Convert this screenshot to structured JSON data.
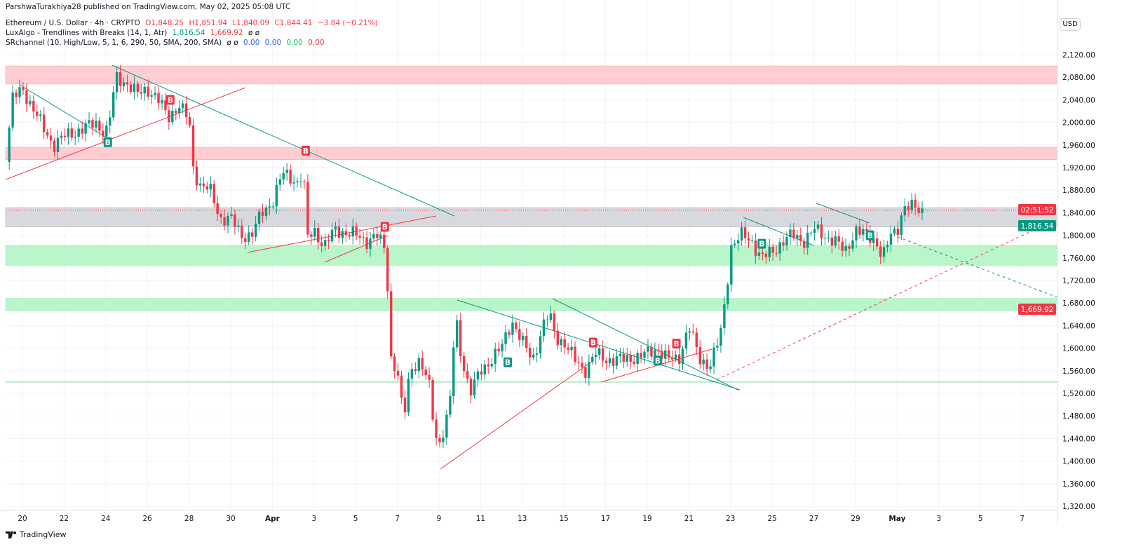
{
  "header": {
    "published": "ParshwaTurakhiya28 published on TradingView.com, May 02, 2025 05:08 UTC"
  },
  "legend": {
    "symbol": "Ethereum / U.S. Dollar · 4h · CRYPTO",
    "o": "O1,848.25",
    "h": "H1,851.94",
    "l": "L1,840.09",
    "c": "C1,844.41",
    "chg": "−3.84 (−0.21%)",
    "ind1": "LuxAlgo - Trendlines with Breaks (14, 1, Atr)",
    "ind1_v1": "1,816.54",
    "ind1_v2": "1,669.92",
    "ind1_na": "ø ø",
    "ind2": "SRchannel (10, High/Low, 5, 1, 6, 290, 50, SMA, 200, SMA)",
    "ind2_na": "ø ø",
    "ind2_v": [
      "0.00",
      "0.00",
      "0.00",
      "0.00"
    ]
  },
  "currency": "USD",
  "countdown": "02:51:52",
  "footer": {
    "brand": "TradingView"
  },
  "colors": {
    "up": "#089981",
    "down": "#f23645",
    "resistance": "#f23645",
    "support": "#00e676",
    "neutral": "#9598a1"
  },
  "chart_data": {
    "type": "candlestick",
    "timeframe": "4h",
    "ylim": [
      1300,
      2140
    ],
    "y_ticks": [
      "2,120.00",
      "2,080.00",
      "2,040.00",
      "2,000.00",
      "1,960.00",
      "1,920.00",
      "1,880.00",
      "1,840.00",
      "1,800.00",
      "1,760.00",
      "1,720.00",
      "1,680.00",
      "1,640.00",
      "1,600.00",
      "1,560.00",
      "1,520.00",
      "1,480.00",
      "1,440.00",
      "1,400.00",
      "1,360.00",
      "1,320.00"
    ],
    "y_tick_values": [
      2120,
      2080,
      2040,
      2000,
      1960,
      1920,
      1880,
      1840,
      1800,
      1760,
      1720,
      1680,
      1640,
      1600,
      1560,
      1520,
      1480,
      1440,
      1400,
      1360,
      1320
    ],
    "x_ticks": [
      "20",
      "22",
      "24",
      "26",
      "28",
      "30",
      "Apr",
      "3",
      "5",
      "7",
      "9",
      "11",
      "13",
      "15",
      "17",
      "19",
      "21",
      "23",
      "25",
      "27",
      "29",
      "May",
      "3",
      "5",
      "7"
    ],
    "x_tick_days": [
      0,
      2,
      4,
      6,
      8,
      10,
      12,
      14,
      16,
      18,
      20,
      22,
      24,
      26,
      28,
      30,
      32,
      34,
      36,
      38,
      40,
      42,
      44,
      46,
      48
    ],
    "price_path_note_days_since_mar20": "day,price",
    "price_path": [
      [
        -0.8,
        1930
      ],
      [
        -0.5,
        2040
      ],
      [
        0,
        2060
      ],
      [
        1,
        1990
      ],
      [
        1.5,
        1960
      ],
      [
        2,
        1975
      ],
      [
        3,
        1990
      ],
      [
        3.5,
        2000
      ],
      [
        4,
        1980
      ],
      [
        4.2,
        2010
      ],
      [
        4.5,
        2080
      ],
      [
        5,
        2070
      ],
      [
        5.5,
        2050
      ],
      [
        6,
        2060
      ],
      [
        6.5,
        2040
      ],
      [
        7,
        2010
      ],
      [
        7.5,
        2030
      ],
      [
        8,
        2005
      ],
      [
        8.2,
        1920
      ],
      [
        8.5,
        1890
      ],
      [
        9,
        1880
      ],
      [
        9.5,
        1830
      ],
      [
        10,
        1830
      ],
      [
        10.5,
        1800
      ],
      [
        11,
        1800
      ],
      [
        11.5,
        1840
      ],
      [
        12,
        1860
      ],
      [
        12.5,
        1910
      ],
      [
        13,
        1900
      ],
      [
        13.3,
        1890
      ],
      [
        13.5,
        1930
      ],
      [
        13.6,
        1790
      ],
      [
        14,
        1810
      ],
      [
        14.5,
        1780
      ],
      [
        15,
        1810
      ],
      [
        16,
        1800
      ],
      [
        16.5,
        1790
      ],
      [
        17,
        1800
      ],
      [
        17.5,
        1770
      ],
      [
        17.6,
        1590
      ],
      [
        18,
        1560
      ],
      [
        18.3,
        1470
      ],
      [
        18.6,
        1560
      ],
      [
        19,
        1580
      ],
      [
        19.5,
        1540
      ],
      [
        19.8,
        1450
      ],
      [
        20,
        1430
      ],
      [
        20.5,
        1490
      ],
      [
        20.8,
        1660
      ],
      [
        21,
        1600
      ],
      [
        21.5,
        1520
      ],
      [
        22,
        1560
      ],
      [
        22.5,
        1580
      ],
      [
        23,
        1600
      ],
      [
        23.5,
        1650
      ],
      [
        24,
        1610
      ],
      [
        24.5,
        1580
      ],
      [
        25,
        1640
      ],
      [
        25.3,
        1660
      ],
      [
        25.6,
        1620
      ],
      [
        26,
        1610
      ],
      [
        26.5,
        1580
      ],
      [
        27,
        1560
      ],
      [
        27.5,
        1590
      ],
      [
        28,
        1580
      ],
      [
        29,
        1580
      ],
      [
        30,
        1590
      ],
      [
        30.5,
        1600
      ],
      [
        31,
        1580
      ],
      [
        31.5,
        1580
      ],
      [
        32,
        1640
      ],
      [
        32.5,
        1580
      ],
      [
        33,
        1570
      ],
      [
        33.5,
        1620
      ],
      [
        33.8,
        1700
      ],
      [
        34,
        1780
      ],
      [
        34.5,
        1800
      ],
      [
        35,
        1790
      ],
      [
        35.5,
        1760
      ],
      [
        36,
        1770
      ],
      [
        36.5,
        1790
      ],
      [
        37,
        1800
      ],
      [
        37.5,
        1790
      ],
      [
        38,
        1810
      ],
      [
        38.5,
        1800
      ],
      [
        39,
        1790
      ],
      [
        39.5,
        1770
      ],
      [
        40,
        1810
      ],
      [
        40.5,
        1800
      ],
      [
        41,
        1790
      ],
      [
        41.3,
        1760
      ],
      [
        41.7,
        1800
      ],
      [
        42,
        1810
      ],
      [
        42.3,
        1850
      ],
      [
        42.6,
        1850
      ],
      [
        43.2,
        1844
      ]
    ],
    "zones": [
      {
        "type": "resistance",
        "from": 2068,
        "to": 2100
      },
      {
        "type": "resistance",
        "from": 1934,
        "to": 1956
      },
      {
        "type": "neutral",
        "from": 1815,
        "to": 1849
      },
      {
        "type": "support",
        "from": 1747,
        "to": 1782
      },
      {
        "type": "support",
        "from": 1667,
        "to": 1688
      }
    ],
    "support_line": 1540,
    "last_price": 1844.41,
    "price_labels": {
      "upper_trendline": "1,816.54",
      "lower_trendline": "1,669.92"
    },
    "break_labels": [
      {
        "day": 4.1,
        "price": 1965,
        "kind": "B",
        "dir": "up"
      },
      {
        "day": 7.1,
        "price": 2040,
        "kind": "B",
        "dir": "down"
      },
      {
        "day": 13.6,
        "price": 1950,
        "kind": "B",
        "dir": "down"
      },
      {
        "day": 17.4,
        "price": 1815,
        "kind": "B",
        "dir": "down"
      },
      {
        "day": 23.3,
        "price": 1575,
        "kind": "B",
        "dir": "up"
      },
      {
        "day": 27.4,
        "price": 1610,
        "kind": "B",
        "dir": "down"
      },
      {
        "day": 30.5,
        "price": 1578,
        "kind": "B",
        "dir": "up"
      },
      {
        "day": 31.4,
        "price": 1608,
        "kind": "B",
        "dir": "down"
      },
      {
        "day": 35.5,
        "price": 1785,
        "kind": "B",
        "dir": "up"
      },
      {
        "day": 40.7,
        "price": 1800,
        "kind": "B",
        "dir": "up"
      }
    ]
  }
}
